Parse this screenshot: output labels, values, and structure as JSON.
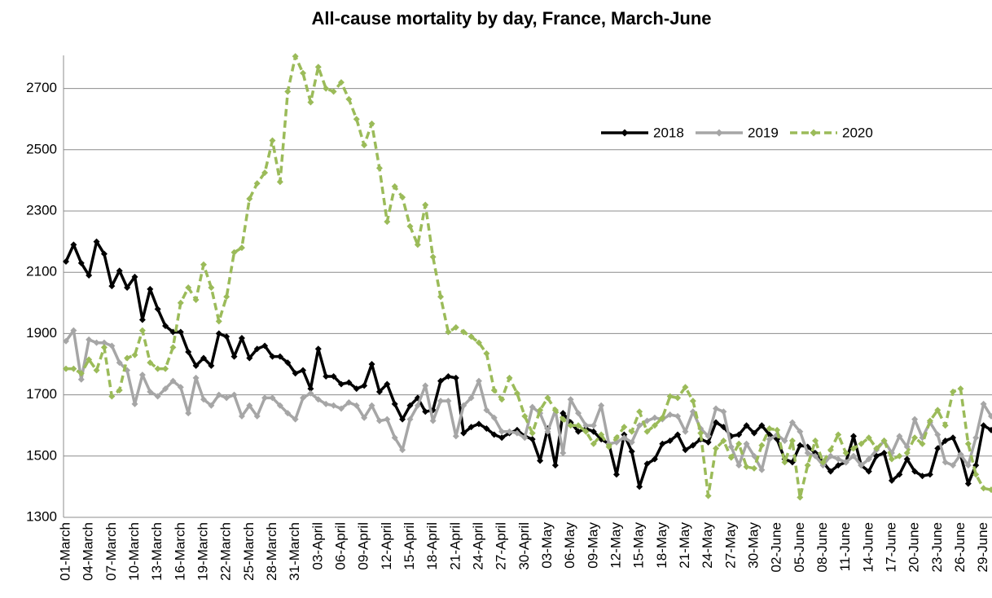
{
  "chart_data": {
    "type": "line",
    "title": "All-cause mortality by day, France, March-June",
    "categories": [
      "01-March",
      null,
      null,
      "04-March",
      null,
      null,
      "07-March",
      null,
      null,
      "10-March",
      null,
      null,
      "13-March",
      null,
      null,
      "16-March",
      null,
      null,
      "19-March",
      null,
      null,
      "22-March",
      null,
      null,
      "25-March",
      null,
      null,
      "28-March",
      null,
      null,
      "31-March",
      null,
      null,
      "03-April",
      null,
      null,
      "06-April",
      null,
      null,
      "09-April",
      null,
      null,
      "12-April",
      null,
      null,
      "15-April",
      null,
      null,
      "18-April",
      null,
      null,
      "21-April",
      null,
      null,
      "24-April",
      null,
      null,
      "27-April",
      null,
      null,
      "30-April",
      null,
      null,
      "03-May",
      null,
      null,
      "06-May",
      null,
      null,
      "09-May",
      null,
      null,
      "12-May",
      null,
      null,
      "15-May",
      null,
      null,
      "18-May",
      null,
      null,
      "21-May",
      null,
      null,
      "24-May",
      null,
      null,
      "27-May",
      null,
      null,
      "30-May",
      null,
      null,
      "02-June",
      null,
      null,
      "05-June",
      null,
      null,
      "08-June",
      null,
      null,
      "11-June",
      null,
      null,
      "14-June",
      null,
      null,
      "17-June",
      null,
      null,
      "20-June",
      null,
      null,
      "23-June",
      null,
      null,
      "26-June",
      null,
      null,
      "29-June",
      null
    ],
    "series": [
      {
        "name": "2018",
        "color": "#000000",
        "dashed": false,
        "values": [
          2135,
          2190,
          2130,
          2090,
          2200,
          2160,
          2055,
          2105,
          2050,
          2085,
          1945,
          2045,
          1980,
          1925,
          1905,
          1905,
          1840,
          1795,
          1820,
          1795,
          1900,
          1890,
          1825,
          1885,
          1820,
          1850,
          1860,
          1825,
          1825,
          1805,
          1770,
          1780,
          1720,
          1850,
          1760,
          1760,
          1735,
          1740,
          1720,
          1730,
          1800,
          1710,
          1735,
          1670,
          1620,
          1665,
          1690,
          1645,
          1650,
          1745,
          1760,
          1755,
          1575,
          1595,
          1605,
          1590,
          1570,
          1560,
          1575,
          1585,
          1565,
          1555,
          1485,
          1590,
          1470,
          1640,
          1610,
          1580,
          1590,
          1580,
          1555,
          1540,
          1440,
          1570,
          1515,
          1400,
          1475,
          1490,
          1540,
          1550,
          1570,
          1520,
          1535,
          1555,
          1545,
          1610,
          1595,
          1565,
          1570,
          1600,
          1575,
          1600,
          1570,
          1555,
          1490,
          1480,
          1535,
          1530,
          1510,
          1480,
          1450,
          1470,
          1480,
          1565,
          1470,
          1450,
          1500,
          1510,
          1420,
          1440,
          1490,
          1450,
          1435,
          1440,
          1525,
          1550,
          1560,
          1505,
          1410,
          1470,
          1600,
          1585
        ]
      },
      {
        "name": "2019",
        "color": "#a6a6a6",
        "dashed": false,
        "values": [
          1875,
          1910,
          1750,
          1880,
          1870,
          1870,
          1860,
          1805,
          1780,
          1670,
          1765,
          1710,
          1695,
          1720,
          1745,
          1725,
          1640,
          1755,
          1685,
          1665,
          1700,
          1690,
          1700,
          1630,
          1665,
          1630,
          1690,
          1690,
          1665,
          1640,
          1620,
          1690,
          1705,
          1685,
          1670,
          1665,
          1655,
          1675,
          1665,
          1625,
          1665,
          1615,
          1620,
          1560,
          1520,
          1620,
          1665,
          1730,
          1615,
          1680,
          1680,
          1565,
          1665,
          1690,
          1745,
          1650,
          1625,
          1580,
          1580,
          1575,
          1560,
          1660,
          1640,
          1580,
          1650,
          1510,
          1685,
          1640,
          1600,
          1600,
          1665,
          1540,
          1545,
          1560,
          1545,
          1600,
          1615,
          1625,
          1620,
          1635,
          1630,
          1580,
          1645,
          1590,
          1565,
          1655,
          1645,
          1530,
          1470,
          1540,
          1500,
          1455,
          1555,
          1570,
          1550,
          1610,
          1580,
          1510,
          1500,
          1470,
          1500,
          1490,
          1480,
          1500,
          1470,
          1490,
          1520,
          1550,
          1510,
          1565,
          1530,
          1620,
          1560,
          1610,
          1570,
          1480,
          1470,
          1505,
          1470,
          1560,
          1670,
          1630
        ]
      },
      {
        "name": "2020",
        "color": "#9bbb59",
        "dashed": true,
        "values": [
          1785,
          1785,
          1770,
          1815,
          1780,
          1855,
          1695,
          1715,
          1820,
          1830,
          1910,
          1805,
          1785,
          1785,
          1855,
          2000,
          2050,
          2010,
          2125,
          2050,
          1940,
          2020,
          2165,
          2180,
          2340,
          2390,
          2425,
          2530,
          2395,
          2690,
          2805,
          2750,
          2655,
          2770,
          2700,
          2690,
          2720,
          2665,
          2600,
          2515,
          2585,
          2440,
          2265,
          2380,
          2345,
          2250,
          2190,
          2320,
          2150,
          2020,
          1905,
          1920,
          1905,
          1890,
          1870,
          1835,
          1715,
          1685,
          1755,
          1705,
          1630,
          1575,
          1650,
          1690,
          1650,
          1620,
          1600,
          1600,
          1580,
          1540,
          1570,
          1530,
          1560,
          1595,
          1580,
          1645,
          1580,
          1600,
          1625,
          1695,
          1690,
          1725,
          1680,
          1575,
          1370,
          1525,
          1550,
          1495,
          1540,
          1465,
          1460,
          1535,
          1590,
          1585,
          1480,
          1550,
          1365,
          1470,
          1550,
          1480,
          1520,
          1570,
          1510,
          1525,
          1540,
          1560,
          1525,
          1550,
          1490,
          1500,
          1510,
          1560,
          1540,
          1615,
          1650,
          1600,
          1710,
          1720,
          1540,
          1440,
          1395,
          1390
        ]
      }
    ],
    "ylim": [
      1300,
      2800
    ],
    "yticks": [
      1300,
      1500,
      1700,
      1900,
      2100,
      2300,
      2500,
      2700
    ],
    "grid": true,
    "legend": "top-right"
  }
}
